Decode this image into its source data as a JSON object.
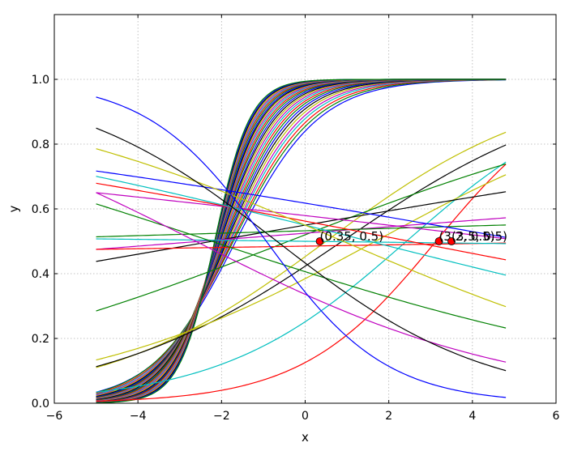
{
  "chart_data": {
    "type": "line",
    "title": "",
    "xlabel": "x",
    "ylabel": "y",
    "xlim": [
      -6,
      6
    ],
    "ylim": [
      0.0,
      1.2
    ],
    "xticks": [
      "−6",
      "−4",
      "−2",
      "0",
      "2",
      "4",
      "6"
    ],
    "yticks": [
      "0.0",
      "0.2",
      "0.4",
      "0.6",
      "0.8",
      "1.0"
    ],
    "grid": true,
    "series_domain": [
      -5.0,
      4.8
    ],
    "series_function": "sigmoid(a*x + b)",
    "series": [
      {
        "color": "#0000ff",
        "a": 1.0,
        "b": 1.66
      },
      {
        "color": "#008000",
        "a": 1.03,
        "b": 1.77
      },
      {
        "color": "#ff0000",
        "a": 1.07,
        "b": 1.87
      },
      {
        "color": "#00bfbf",
        "a": 1.11,
        "b": 1.98
      },
      {
        "color": "#bf00bf",
        "a": 1.15,
        "b": 2.08
      },
      {
        "color": "#bfbf00",
        "a": 1.19,
        "b": 2.19
      },
      {
        "color": "#000000",
        "a": 1.23,
        "b": 2.3
      },
      {
        "color": "#0000ff",
        "a": 1.27,
        "b": 2.41
      },
      {
        "color": "#008000",
        "a": 1.31,
        "b": 2.52
      },
      {
        "color": "#ff0000",
        "a": 1.35,
        "b": 2.63
      },
      {
        "color": "#00bfbf",
        "a": 1.39,
        "b": 2.74
      },
      {
        "color": "#bf00bf",
        "a": 1.43,
        "b": 2.85
      },
      {
        "color": "#bfbf00",
        "a": 1.47,
        "b": 2.96
      },
      {
        "color": "#000000",
        "a": 1.51,
        "b": 3.07
      },
      {
        "color": "#0000ff",
        "a": 1.56,
        "b": 3.19
      },
      {
        "color": "#008000",
        "a": 1.6,
        "b": 3.31
      },
      {
        "color": "#ff0000",
        "a": 1.65,
        "b": 3.43
      },
      {
        "color": "#00bfbf",
        "a": 1.7,
        "b": 3.55
      },
      {
        "color": "#bf00bf",
        "a": 1.75,
        "b": 3.67
      },
      {
        "color": "#bfbf00",
        "a": 1.8,
        "b": 3.79
      },
      {
        "color": "#000000",
        "a": 1.85,
        "b": 3.9
      },
      {
        "color": "#0000ff",
        "a": 1.9,
        "b": 4.02
      },
      {
        "color": "#008000",
        "a": 1.95,
        "b": 4.15
      },
      {
        "color": "#ff0000",
        "a": 2.0,
        "b": 4.28
      },
      {
        "color": "#00bfbf",
        "a": 2.06,
        "b": 4.41
      },
      {
        "color": "#bf00bf",
        "a": 2.12,
        "b": 4.55
      },
      {
        "color": "#bfbf00",
        "a": 2.18,
        "b": 4.69
      },
      {
        "color": "#000000",
        "a": 2.24,
        "b": 4.83
      },
      {
        "color": "#0000ff",
        "a": 2.3,
        "b": 4.97
      },
      {
        "color": "#008000",
        "a": 2.36,
        "b": 5.11
      },
      {
        "color": "#ff0000",
        "a": 0.62,
        "b": -1.94
      },
      {
        "color": "#00bfbf",
        "a": 0.45,
        "b": -1.09
      },
      {
        "color": "#bfbf00",
        "a": 0.38,
        "b": -0.19
      },
      {
        "color": "#000000",
        "a": 0.35,
        "b": -0.31
      },
      {
        "color": "#bfbf00",
        "a": 0.28,
        "b": -0.47
      },
      {
        "color": "#008000",
        "a": 0.2,
        "b": 0.08
      },
      {
        "color": "#000000",
        "a": 0.09,
        "b": 0.2
      },
      {
        "color": "#bf00bf",
        "a": 0.04,
        "b": 0.1
      },
      {
        "color": "#008000",
        "a": 0.015,
        "b": 0.13
      },
      {
        "color": "#ff0000",
        "a": 0.008,
        "b": -0.06
      },
      {
        "color": "#00bfbf",
        "a": -0.006,
        "b": 0.0
      },
      {
        "color": "#bf00bf",
        "a": -0.06,
        "b": 0.32
      },
      {
        "color": "#0000ff",
        "a": -0.09,
        "b": 0.48
      },
      {
        "color": "#ff0000",
        "a": -0.1,
        "b": 0.25
      },
      {
        "color": "#00bfbf",
        "a": -0.13,
        "b": 0.2
      },
      {
        "color": "#008000",
        "a": -0.17,
        "b": -0.38
      },
      {
        "color": "#bfbf00",
        "a": -0.22,
        "b": 0.2
      },
      {
        "color": "#bf00bf",
        "a": -0.26,
        "b": -0.68
      },
      {
        "color": "#000000",
        "a": -0.4,
        "b": -0.27
      },
      {
        "color": "#0000ff",
        "a": -0.7,
        "b": -0.65
      }
    ],
    "points": [
      {
        "x": 0.35,
        "y": 0.5,
        "label": "(0.35, 0.5)"
      },
      {
        "x": 3.2,
        "y": 0.5,
        "label": "(3.2, 0.5)"
      },
      {
        "x": 3.5,
        "y": 0.5,
        "label": "(3.5, 0.5)"
      }
    ],
    "point_color": "#ff0000"
  }
}
